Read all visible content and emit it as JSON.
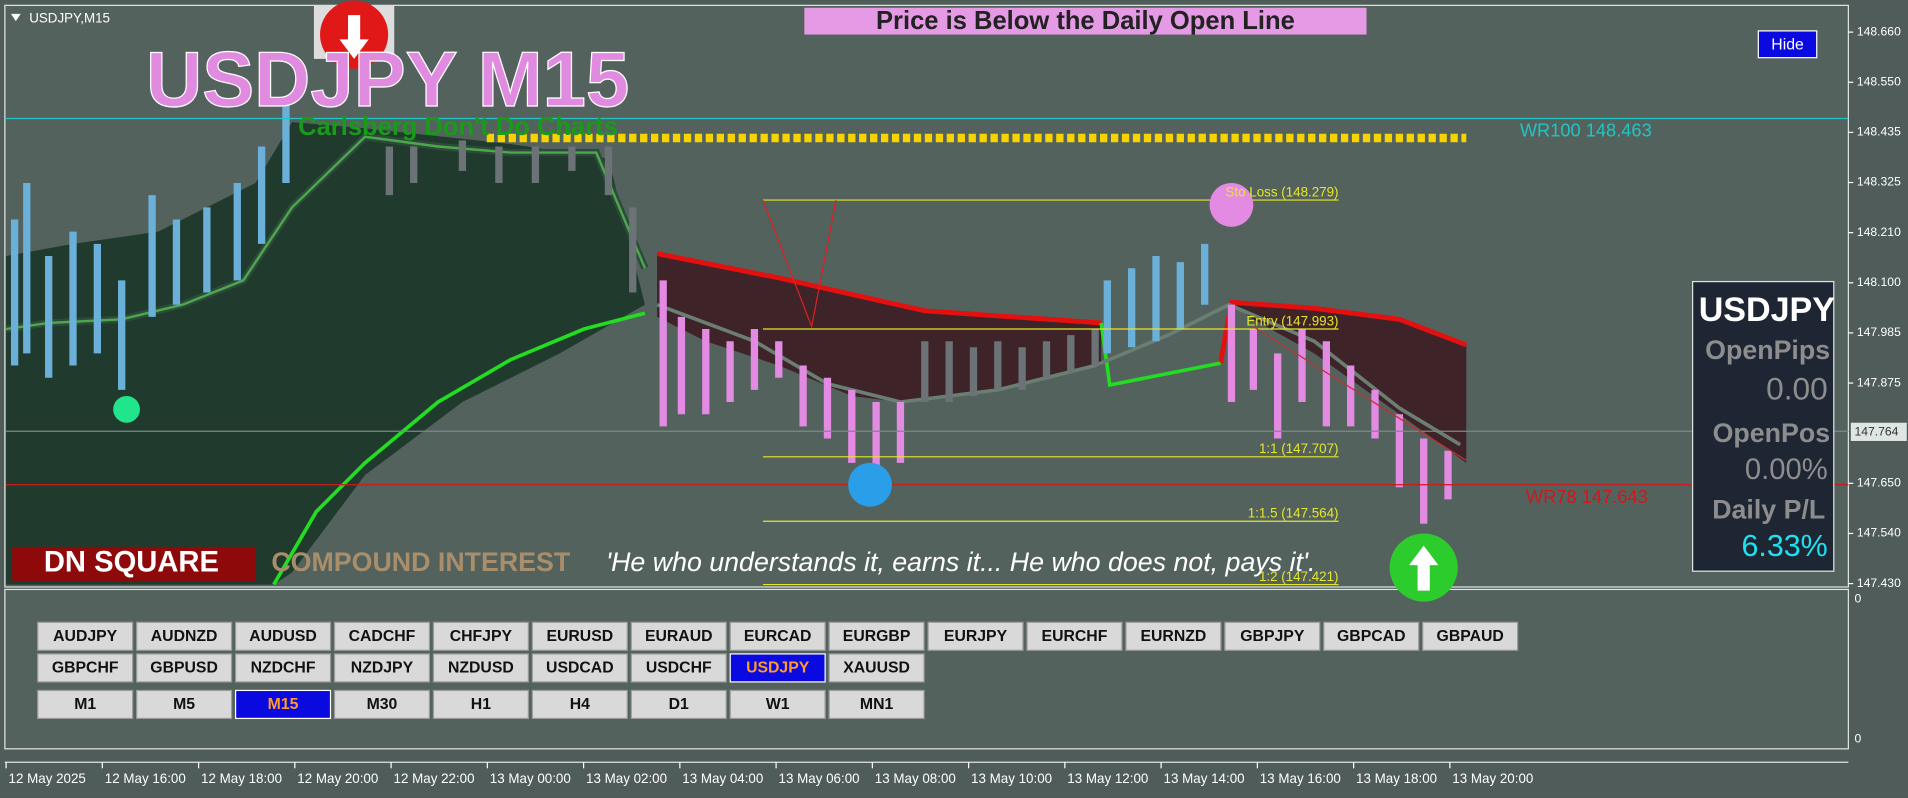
{
  "window": {
    "symbol_label": "USDJPY,M15"
  },
  "header": {
    "title": "USDJPY M15",
    "subtitle": "Carlsberg Don't Do Charts",
    "banner": "Price is Below the Daily Open Line",
    "hide_button": "Hide"
  },
  "price_axis": {
    "ticks": [
      "148.660",
      "148.550",
      "148.435",
      "148.325",
      "148.210",
      "148.100",
      "147.985",
      "147.875",
      "147.650",
      "147.540",
      "147.430"
    ],
    "current_price": "147.764"
  },
  "levels": {
    "wr100": "WR100  148.463",
    "wr78": "WR78  147.643"
  },
  "trade_levels": {
    "stop_loss": "Sto Loss (148.279)",
    "entry": "Entry (147.993)",
    "r1": "1:1 (147.707)",
    "r15": "1:1.5 (147.564)",
    "r2": "1:2 (147.421)"
  },
  "panel": {
    "symbol": "USDJPY",
    "open_pips_label": "OpenPips",
    "open_pips": "0.00",
    "open_pos_label": "OpenPos",
    "open_pos": "0.00%",
    "daily_pl_label": "Daily P/L",
    "daily_pl": "6.33%"
  },
  "footer": {
    "brand": "DN SQUARE",
    "tagline": "COMPOUND INTEREST",
    "quote": "'He who understands it, earns it... He who does not, pays it'."
  },
  "symbol_buttons": [
    "AUDJPY",
    "AUDNZD",
    "AUDUSD",
    "CADCHF",
    "CHFJPY",
    "EURUSD",
    "EURAUD",
    "EURCAD",
    "EURGBP",
    "EURJPY",
    "EURCHF",
    "EURNZD",
    "GBPJPY",
    "GBPCAD",
    "GBPAUD",
    "GBPCHF",
    "GBPUSD",
    "NZDCHF",
    "NZDJPY",
    "NZDUSD",
    "USDCAD",
    "USDCHF",
    "USDJPY",
    "XAUUSD"
  ],
  "active_symbol": "USDJPY",
  "timeframe_buttons": [
    "M1",
    "M5",
    "M15",
    "M30",
    "H1",
    "H4",
    "D1",
    "W1",
    "MN1"
  ],
  "active_timeframe": "M15",
  "indicator_axis": [
    "0",
    "0"
  ],
  "time_axis": [
    "12 May 2025",
    "12 May 16:00",
    "12 May 18:00",
    "12 May 20:00",
    "12 May 22:00",
    "13 May 00:00",
    "13 May 02:00",
    "13 May 04:00",
    "13 May 06:00",
    "13 May 08:00",
    "13 May 10:00",
    "13 May 12:00",
    "13 May 14:00",
    "13 May 16:00",
    "13 May 18:00",
    "13 May 20:00"
  ]
}
